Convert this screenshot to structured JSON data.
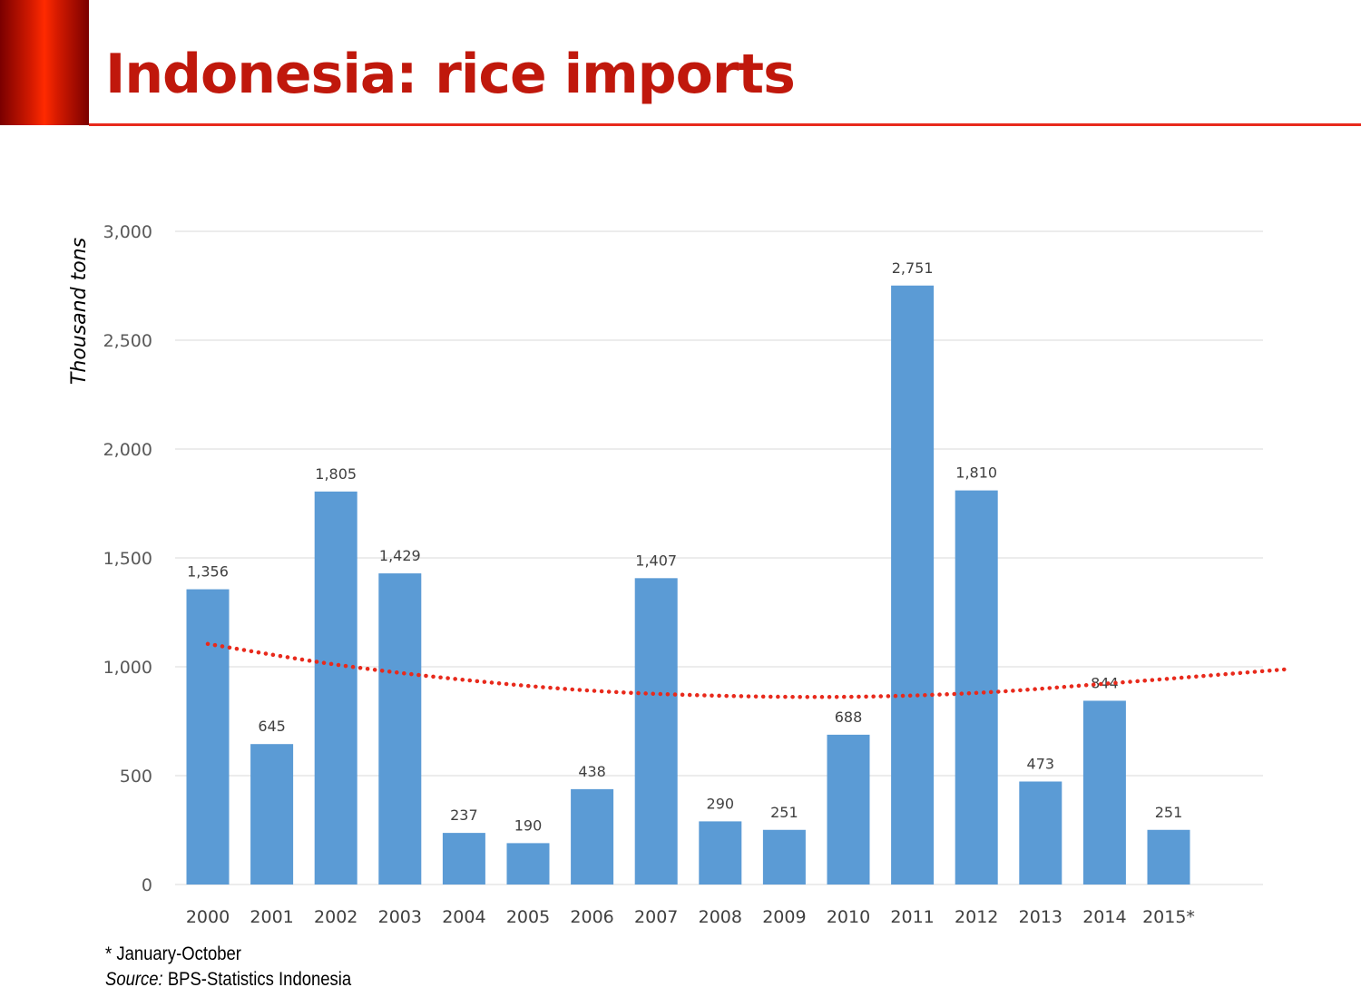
{
  "title": "Indonesia: rice imports",
  "footnote": "* January-October",
  "source": {
    "label": "Source:",
    "text": " BPS-Statistics Indonesia"
  },
  "colors": {
    "bar": "#5b9bd5",
    "trend": "#e82a1c",
    "title": "#c0180c",
    "grid": "#d9d9d9"
  },
  "chart_data": {
    "type": "bar",
    "title": "",
    "xlabel": "",
    "ylabel": "Thousand tons",
    "ylim": [
      0,
      3000
    ],
    "yticks": [
      0,
      500,
      1000,
      1500,
      2000,
      2500,
      3000
    ],
    "ytick_labels": [
      "0",
      "500",
      "1,000",
      "1,500",
      "2,000",
      "2,500",
      "3,000"
    ],
    "grid": true,
    "categories": [
      "2000",
      "2001",
      "2002",
      "2003",
      "2004",
      "2005",
      "2006",
      "2007",
      "2008",
      "2009",
      "2010",
      "2011",
      "2012",
      "2013",
      "2014",
      "2015*"
    ],
    "values": [
      1356,
      645,
      1805,
      1429,
      237,
      190,
      438,
      1407,
      290,
      251,
      688,
      2751,
      1810,
      473,
      844,
      251
    ],
    "data_labels": [
      "1,356",
      "645",
      "1,805",
      "1,429",
      "237",
      "190",
      "438",
      "1,407",
      "290",
      "251",
      "688",
      "2,751",
      "1,810",
      "473",
      "844",
      "251"
    ],
    "trendline": {
      "type": "polynomial",
      "style": "dotted",
      "x_range": [
        0,
        16.9
      ],
      "points": [
        {
          "x": 0,
          "y": 1105
        },
        {
          "x": 2,
          "y": 1010
        },
        {
          "x": 4,
          "y": 940
        },
        {
          "x": 6,
          "y": 890
        },
        {
          "x": 8,
          "y": 867
        },
        {
          "x": 10,
          "y": 862
        },
        {
          "x": 12,
          "y": 880
        },
        {
          "x": 14,
          "y": 922
        },
        {
          "x": 16.9,
          "y": 990
        }
      ]
    }
  }
}
